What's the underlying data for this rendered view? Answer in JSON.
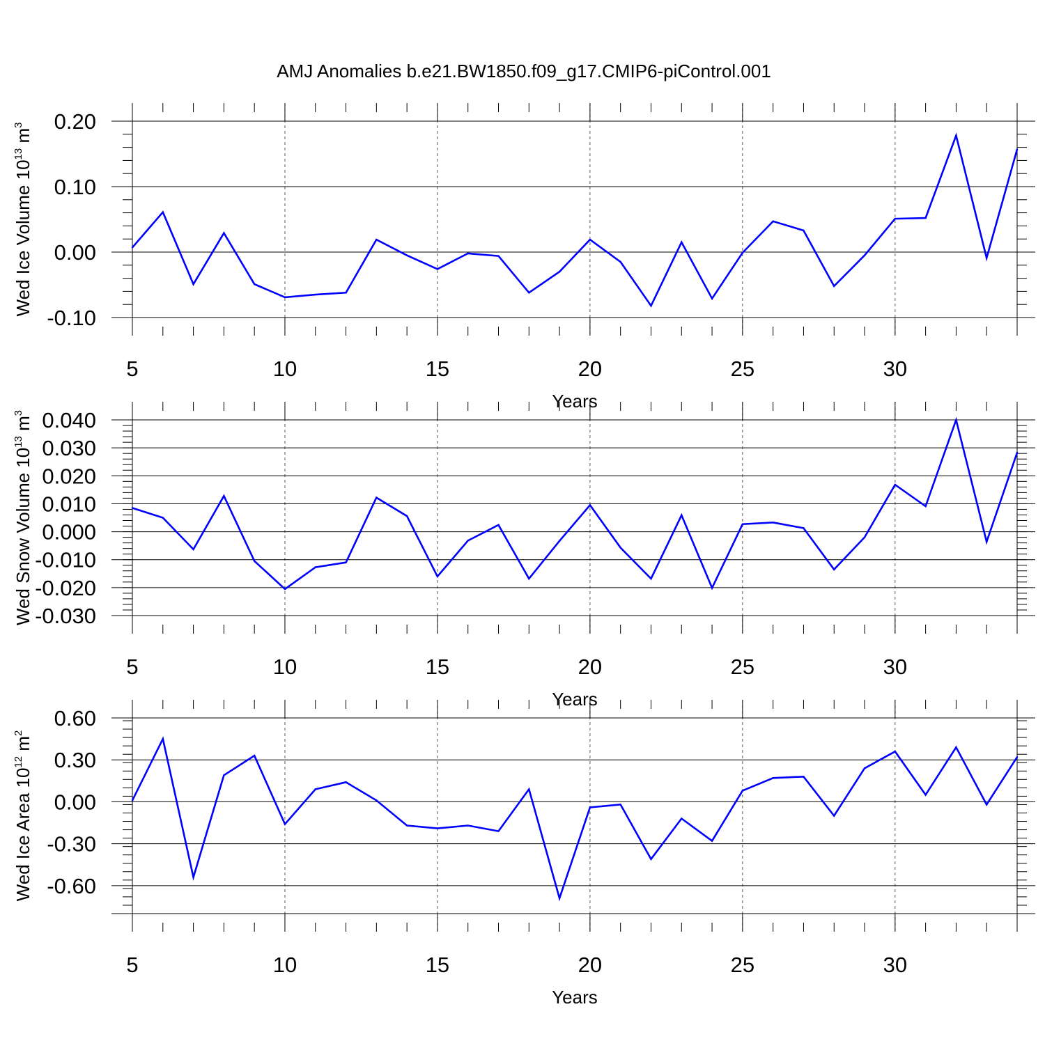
{
  "figure_title": "AMJ Anomalies b.e21.BW1850.f09_g17.CMIP6-piControl.001",
  "line_color": "#0000ff",
  "chart_data": [
    {
      "type": "line",
      "xlabel": "Years",
      "ylabel_text": "Wed Ice Volume 10",
      "ylabel_exp": "13",
      "ylabel_unit": " m",
      "ylabel_unit_exp": "3",
      "xlim": [
        5,
        34
      ],
      "ylim": [
        -0.1,
        0.2
      ],
      "yticks": [
        -0.1,
        0.0,
        0.1,
        0.2
      ],
      "ytick_labels": [
        "-0.10",
        "0.00",
        "0.10",
        "0.20"
      ],
      "xticks": [
        5,
        10,
        15,
        20,
        25,
        30
      ],
      "xtick_labels": [
        "5",
        "10",
        "15",
        "20",
        "25",
        "30"
      ],
      "grid": "vertical dashed at major x ticks",
      "series": [
        {
          "x": [
            5,
            6,
            7,
            8,
            9,
            10,
            11,
            12,
            13,
            14,
            15,
            16,
            17,
            18,
            19,
            20,
            21,
            22,
            23,
            24,
            25,
            26,
            27,
            28,
            29,
            30,
            31,
            32,
            33,
            34
          ],
          "values": [
            0.007,
            0.061,
            -0.049,
            0.029,
            -0.049,
            -0.069,
            -0.065,
            -0.062,
            0.019,
            -0.005,
            -0.026,
            -0.002,
            -0.006,
            -0.062,
            -0.03,
            0.019,
            -0.015,
            -0.082,
            0.015,
            -0.071,
            -0.001,
            0.047,
            0.033,
            -0.052,
            -0.005,
            0.051,
            0.052,
            0.178,
            -0.009,
            0.157
          ]
        }
      ]
    },
    {
      "type": "line",
      "xlabel": "Years",
      "ylabel_text": "Wed Snow Volume 10",
      "ylabel_exp": "13",
      "ylabel_unit": " m",
      "ylabel_unit_exp": "3",
      "xlim": [
        5,
        34
      ],
      "ylim": [
        -0.03,
        0.04
      ],
      "yticks": [
        -0.03,
        -0.02,
        -0.01,
        0.0,
        0.01,
        0.02,
        0.03,
        0.04
      ],
      "ytick_labels": [
        "-0.030",
        "-0.020",
        "-0.010",
        "0.000",
        "0.010",
        "0.020",
        "0.030",
        "0.040"
      ],
      "xticks": [
        5,
        10,
        15,
        20,
        25,
        30
      ],
      "xtick_labels": [
        "5",
        "10",
        "15",
        "20",
        "25",
        "30"
      ],
      "grid": "vertical dashed at major x ticks",
      "series": [
        {
          "x": [
            5,
            6,
            7,
            8,
            9,
            10,
            11,
            12,
            13,
            14,
            15,
            16,
            17,
            18,
            19,
            20,
            21,
            22,
            23,
            24,
            25,
            26,
            27,
            28,
            29,
            30,
            31,
            32,
            33,
            34
          ],
          "values": [
            0.0085,
            0.005,
            -0.0063,
            0.0128,
            -0.0105,
            -0.0205,
            -0.0127,
            -0.011,
            0.0122,
            0.0056,
            -0.016,
            -0.0032,
            0.0024,
            -0.0168,
            -0.0033,
            0.0095,
            -0.0057,
            -0.0168,
            0.0059,
            -0.0201,
            0.0027,
            0.0033,
            0.0013,
            -0.0135,
            -0.002,
            0.0168,
            0.0091,
            0.04,
            -0.0036,
            0.0283
          ]
        }
      ]
    },
    {
      "type": "line",
      "xlabel": "Years",
      "ylabel_text": "Wed Ice Area 10",
      "ylabel_exp": "12",
      "ylabel_unit": " m",
      "ylabel_unit_exp": "2",
      "xlim": [
        5,
        34
      ],
      "ylim": [
        -0.8,
        0.6
      ],
      "yticks": [
        -0.6,
        -0.3,
        0.0,
        0.3,
        0.6
      ],
      "ytick_labels": [
        "-0.60",
        "-0.30",
        "0.00",
        "0.30",
        "0.60"
      ],
      "xticks": [
        5,
        10,
        15,
        20,
        25,
        30
      ],
      "xtick_labels": [
        "5",
        "10",
        "15",
        "20",
        "25",
        "30"
      ],
      "grid": "vertical dashed at major x ticks",
      "series": [
        {
          "x": [
            5,
            6,
            7,
            8,
            9,
            10,
            11,
            12,
            13,
            14,
            15,
            16,
            17,
            18,
            19,
            20,
            21,
            22,
            23,
            24,
            25,
            26,
            27,
            28,
            29,
            30,
            31,
            32,
            33,
            34
          ],
          "values": [
            0.01,
            0.45,
            -0.54,
            0.19,
            0.33,
            -0.16,
            0.09,
            0.14,
            0.01,
            -0.17,
            -0.19,
            -0.17,
            -0.21,
            0.09,
            -0.69,
            -0.04,
            -0.02,
            -0.41,
            -0.12,
            -0.28,
            0.08,
            0.17,
            0.18,
            -0.1,
            0.24,
            0.36,
            0.05,
            0.39,
            -0.02,
            0.32
          ]
        }
      ]
    }
  ]
}
